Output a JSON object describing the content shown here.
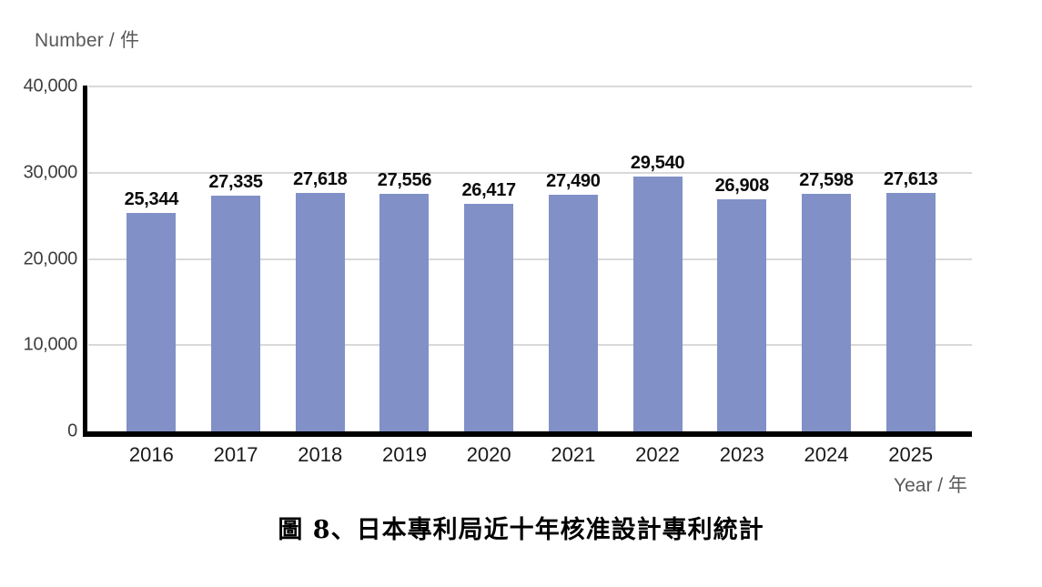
{
  "chart_data": {
    "type": "bar",
    "title": "圖 8、日本專利局近十年核准設計專利統計",
    "y_axis_title": "Number / 件",
    "x_axis_title": "Year / 年",
    "categories": [
      "2016",
      "2017",
      "2018",
      "2019",
      "2020",
      "2021",
      "2022",
      "2023",
      "2024",
      "2025"
    ],
    "values": [
      25344,
      27335,
      27618,
      27556,
      26417,
      27490,
      29540,
      26908,
      27598,
      27613
    ],
    "value_labels": [
      "25,344",
      "27,335",
      "27,618",
      "27,556",
      "26,417",
      "27,490",
      "29,540",
      "26,908",
      "27,598",
      "27,613"
    ],
    "ylim": [
      0,
      40000
    ],
    "y_ticks": [
      "40,000",
      "30,000",
      "20,000",
      "10,000",
      "0"
    ],
    "grid": true,
    "legend": false,
    "colors": {
      "bar": "#8190C7",
      "gridline": "#D9D9D9",
      "axis": "#000000",
      "muted_text": "#595959"
    }
  }
}
